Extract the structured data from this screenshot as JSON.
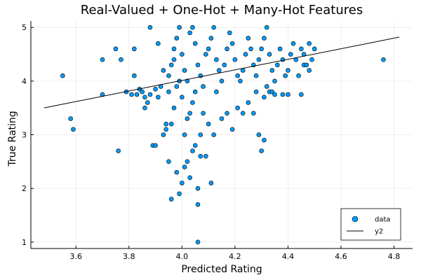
{
  "chart_data": {
    "type": "scatter",
    "title": "Real-Valued + One-Hot + Many-Hot Features",
    "xlabel": "Predicted Rating",
    "ylabel": "True Rating",
    "xlim": [
      3.43,
      4.87
    ],
    "ylim": [
      0.88,
      5.12
    ],
    "xticks": [
      3.6,
      3.8,
      4.0,
      4.2,
      4.4,
      4.6,
      4.8
    ],
    "yticks": [
      1,
      2,
      3,
      4,
      5
    ],
    "grid": true,
    "legend_position": "bottom-right",
    "series": [
      {
        "name": "data",
        "kind": "scatter",
        "color": "#009AFA",
        "points": [
          [
            3.55,
            4.1
          ],
          [
            3.58,
            3.3
          ],
          [
            3.59,
            3.1
          ],
          [
            3.7,
            3.75
          ],
          [
            3.7,
            4.4
          ],
          [
            3.75,
            4.6
          ],
          [
            3.76,
            2.7
          ],
          [
            3.77,
            4.4
          ],
          [
            3.79,
            3.8
          ],
          [
            3.81,
            3.75
          ],
          [
            3.82,
            4.1
          ],
          [
            3.82,
            4.6
          ],
          [
            3.83,
            3.75
          ],
          [
            3.84,
            3.85
          ],
          [
            3.85,
            3.8
          ],
          [
            3.86,
            3.7
          ],
          [
            3.86,
            3.5
          ],
          [
            3.87,
            3.6
          ],
          [
            3.88,
            3.75
          ],
          [
            3.88,
            5.0
          ],
          [
            3.89,
            2.8
          ],
          [
            3.9,
            2.8
          ],
          [
            3.9,
            3.85
          ],
          [
            3.91,
            3.7
          ],
          [
            3.91,
            4.7
          ],
          [
            3.92,
            3.9
          ],
          [
            3.93,
            4.2
          ],
          [
            3.93,
            3.0
          ],
          [
            3.94,
            3.1
          ],
          [
            3.94,
            3.2
          ],
          [
            3.95,
            2.5
          ],
          [
            3.95,
            3.8
          ],
          [
            3.96,
            1.8
          ],
          [
            3.96,
            3.2
          ],
          [
            3.97,
            3.5
          ],
          [
            3.97,
            4.4
          ],
          [
            3.98,
            2.3
          ],
          [
            3.98,
            3.9
          ],
          [
            3.99,
            4.0
          ],
          [
            3.99,
            1.9
          ],
          [
            4.0,
            2.1
          ],
          [
            4.0,
            3.7
          ],
          [
            4.01,
            2.4
          ],
          [
            4.01,
            3.0
          ],
          [
            4.02,
            2.5
          ],
          [
            4.02,
            3.3
          ],
          [
            4.03,
            2.2
          ],
          [
            4.03,
            3.4
          ],
          [
            4.04,
            2.7
          ],
          [
            4.04,
            3.6
          ],
          [
            4.05,
            2.8
          ],
          [
            4.05,
            3.8
          ],
          [
            4.06,
            2.0
          ],
          [
            4.06,
            1.7
          ],
          [
            4.06,
            1.0
          ],
          [
            4.07,
            2.6
          ],
          [
            4.07,
            3.0
          ],
          [
            4.08,
            3.4
          ],
          [
            4.09,
            2.6
          ],
          [
            4.1,
            3.2
          ],
          [
            4.11,
            2.1
          ],
          [
            4.12,
            3.0
          ],
          [
            4.13,
            3.8
          ],
          [
            4.15,
            3.3
          ],
          [
            4.17,
            3.4
          ],
          [
            4.19,
            3.1
          ],
          [
            4.21,
            3.5
          ],
          [
            4.23,
            3.4
          ],
          [
            4.25,
            3.6
          ],
          [
            4.27,
            3.4
          ],
          [
            4.28,
            3.8
          ],
          [
            4.29,
            3.0
          ],
          [
            4.3,
            2.7
          ],
          [
            4.31,
            2.9
          ],
          [
            4.31,
            3.7
          ],
          [
            4.32,
            3.9
          ],
          [
            4.33,
            3.8
          ],
          [
            4.34,
            3.8
          ],
          [
            4.35,
            3.75
          ],
          [
            4.38,
            3.75
          ],
          [
            4.4,
            3.75
          ],
          [
            4.45,
            3.75
          ],
          [
            4.46,
            4.3
          ],
          [
            4.48,
            4.7
          ],
          [
            4.5,
            4.6
          ],
          [
            4.76,
            4.4
          ],
          [
            3.95,
            4.1
          ],
          [
            3.96,
            4.3
          ],
          [
            3.97,
            4.6
          ],
          [
            3.98,
            4.8
          ],
          [
            3.99,
            5.0
          ],
          [
            4.0,
            4.5
          ],
          [
            4.01,
            4.2
          ],
          [
            4.02,
            4.0
          ],
          [
            4.03,
            4.9
          ],
          [
            4.04,
            5.0
          ],
          [
            4.05,
            4.7
          ],
          [
            4.06,
            4.3
          ],
          [
            4.07,
            4.1
          ],
          [
            4.08,
            3.9
          ],
          [
            4.09,
            4.5
          ],
          [
            4.1,
            4.6
          ],
          [
            4.11,
            4.8
          ],
          [
            4.12,
            5.0
          ],
          [
            4.13,
            4.4
          ],
          [
            4.14,
            4.2
          ],
          [
            4.15,
            4.0
          ],
          [
            4.16,
            4.3
          ],
          [
            4.17,
            4.6
          ],
          [
            4.18,
            4.9
          ],
          [
            4.19,
            4.7
          ],
          [
            4.2,
            4.4
          ],
          [
            4.21,
            4.1
          ],
          [
            4.22,
            4.0
          ],
          [
            4.23,
            4.2
          ],
          [
            4.24,
            4.5
          ],
          [
            4.25,
            4.8
          ],
          [
            4.26,
            4.6
          ],
          [
            4.27,
            4.3
          ],
          [
            4.28,
            4.1
          ],
          [
            4.29,
            4.4
          ],
          [
            4.3,
            4.6
          ],
          [
            4.31,
            4.8
          ],
          [
            4.32,
            5.0
          ],
          [
            4.33,
            4.5
          ],
          [
            4.34,
            4.2
          ],
          [
            4.35,
            4.0
          ],
          [
            4.36,
            4.3
          ],
          [
            4.37,
            4.6
          ],
          [
            4.38,
            4.4
          ],
          [
            4.39,
            4.1
          ],
          [
            4.4,
            4.2
          ],
          [
            4.41,
            4.5
          ],
          [
            4.42,
            4.7
          ],
          [
            4.43,
            4.4
          ],
          [
            4.44,
            4.1
          ],
          [
            4.45,
            4.6
          ],
          [
            4.46,
            4.5
          ],
          [
            4.47,
            4.3
          ],
          [
            4.48,
            4.2
          ],
          [
            4.49,
            4.4
          ]
        ]
      },
      {
        "name": "y2",
        "kind": "line",
        "color": "#000000",
        "points": [
          [
            3.48,
            3.5
          ],
          [
            4.82,
            4.82
          ]
        ]
      }
    ]
  }
}
